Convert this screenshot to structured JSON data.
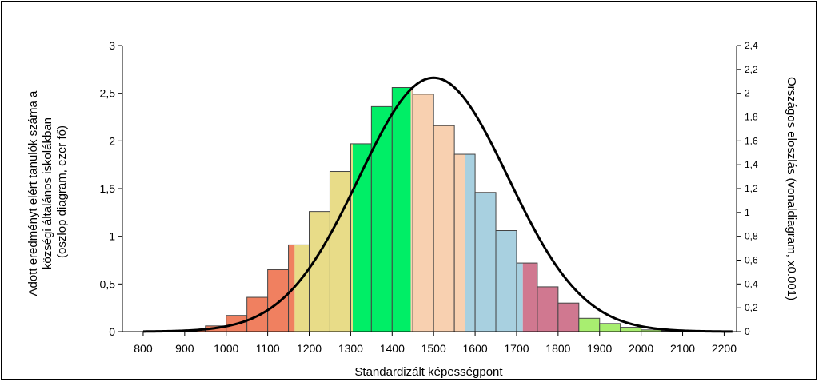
{
  "chart_data": {
    "type": "bar",
    "xlabel": "Standardizált képességpont",
    "ylabel_lines": [
      "Adott eredményt elért tanulók száma a",
      "községi általános iskolákban",
      "(oszlop diagram, ezer fő)"
    ],
    "y2label": "Országos eloszlás (vonaldiagram, x0.001)",
    "xlim": [
      750,
      2230
    ],
    "ylim": [
      0,
      3
    ],
    "y2lim": [
      0,
      2.4
    ],
    "x_ticks": [
      800,
      900,
      1000,
      1100,
      1200,
      1300,
      1400,
      1500,
      1600,
      1700,
      1800,
      1900,
      2000,
      2100,
      2200
    ],
    "y_ticks": [
      0,
      0.5,
      1,
      1.5,
      2,
      2.5,
      3
    ],
    "y_tick_labels": [
      "0",
      "0,5",
      "1",
      "1,5",
      "2",
      "2,5",
      "3"
    ],
    "y2_ticks": [
      0,
      0.2,
      0.4,
      0.6,
      0.8,
      1,
      1.2,
      1.4,
      1.6,
      1.8,
      2,
      2.2,
      2.4
    ],
    "y2_tick_labels": [
      "0",
      "0,2",
      "0,4",
      "0,6",
      "0,8",
      "1",
      "1,2",
      "1,4",
      "1,6",
      "1,8",
      "2",
      "2,2",
      "2,4"
    ],
    "bars": [
      {
        "x0": 800,
        "x1": 850,
        "value": 0.003,
        "color": "#f08060",
        "split": null
      },
      {
        "x0": 850,
        "x1": 900,
        "value": 0.006,
        "color": "#f08060",
        "split": null
      },
      {
        "x0": 900,
        "x1": 950,
        "value": 0.015,
        "color": "#f08060",
        "split": null
      },
      {
        "x0": 950,
        "x1": 1000,
        "value": 0.06,
        "color": "#f08060",
        "split": null
      },
      {
        "x0": 1000,
        "x1": 1050,
        "value": 0.17,
        "color": "#f08060",
        "split": null
      },
      {
        "x0": 1050,
        "x1": 1100,
        "value": 0.36,
        "color": "#f08060",
        "split": null
      },
      {
        "x0": 1100,
        "x1": 1150,
        "value": 0.65,
        "color": "#f08060",
        "split": null
      },
      {
        "x0": 1150,
        "x1": 1200,
        "value": 0.91,
        "color": "#f08060",
        "split": {
          "at": 1165,
          "color": "#e8dc88"
        }
      },
      {
        "x0": 1200,
        "x1": 1250,
        "value": 1.26,
        "color": "#e8dc88",
        "split": null
      },
      {
        "x0": 1250,
        "x1": 1300,
        "value": 1.68,
        "color": "#e8dc88",
        "split": null
      },
      {
        "x0": 1300,
        "x1": 1350,
        "value": 1.97,
        "color": "#e8dc88",
        "split": {
          "at": 1305,
          "color": "#00ee66"
        }
      },
      {
        "x0": 1350,
        "x1": 1400,
        "value": 2.36,
        "color": "#00ee66",
        "split": null
      },
      {
        "x0": 1400,
        "x1": 1450,
        "value": 2.56,
        "color": "#00ee66",
        "split": {
          "at": 1445,
          "color": "#f8d0b0"
        }
      },
      {
        "x0": 1450,
        "x1": 1500,
        "value": 2.49,
        "color": "#f8d0b0",
        "split": null
      },
      {
        "x0": 1500,
        "x1": 1550,
        "value": 2.16,
        "color": "#f8d0b0",
        "split": null
      },
      {
        "x0": 1550,
        "x1": 1600,
        "value": 1.86,
        "color": "#f8d0b0",
        "split": {
          "at": 1575,
          "color": "#a8d0e0"
        }
      },
      {
        "x0": 1600,
        "x1": 1650,
        "value": 1.46,
        "color": "#a8d0e0",
        "split": null
      },
      {
        "x0": 1650,
        "x1": 1700,
        "value": 1.06,
        "color": "#a8d0e0",
        "split": null
      },
      {
        "x0": 1700,
        "x1": 1750,
        "value": 0.72,
        "color": "#a8d0e0",
        "split": {
          "at": 1715,
          "color": "#d07890"
        }
      },
      {
        "x0": 1750,
        "x1": 1800,
        "value": 0.47,
        "color": "#d07890",
        "split": null
      },
      {
        "x0": 1800,
        "x1": 1850,
        "value": 0.3,
        "color": "#d07890",
        "split": null
      },
      {
        "x0": 1850,
        "x1": 1900,
        "value": 0.14,
        "color": "#a8ee70",
        "split": null
      },
      {
        "x0": 1900,
        "x1": 1950,
        "value": 0.085,
        "color": "#a8ee70",
        "split": null
      },
      {
        "x0": 1950,
        "x1": 2000,
        "value": 0.045,
        "color": "#a8ee70",
        "split": null
      },
      {
        "x0": 2000,
        "x1": 2050,
        "value": 0.018,
        "color": "#a8ee70",
        "split": null
      },
      {
        "x0": 2050,
        "x1": 2100,
        "value": 0.008,
        "color": "#a8ee70",
        "split": null
      }
    ],
    "curve": {
      "type": "normal",
      "mean": 1500,
      "sd": 180,
      "peak": 2.13,
      "x_range": [
        800,
        2220
      ],
      "color": "#000000"
    }
  }
}
